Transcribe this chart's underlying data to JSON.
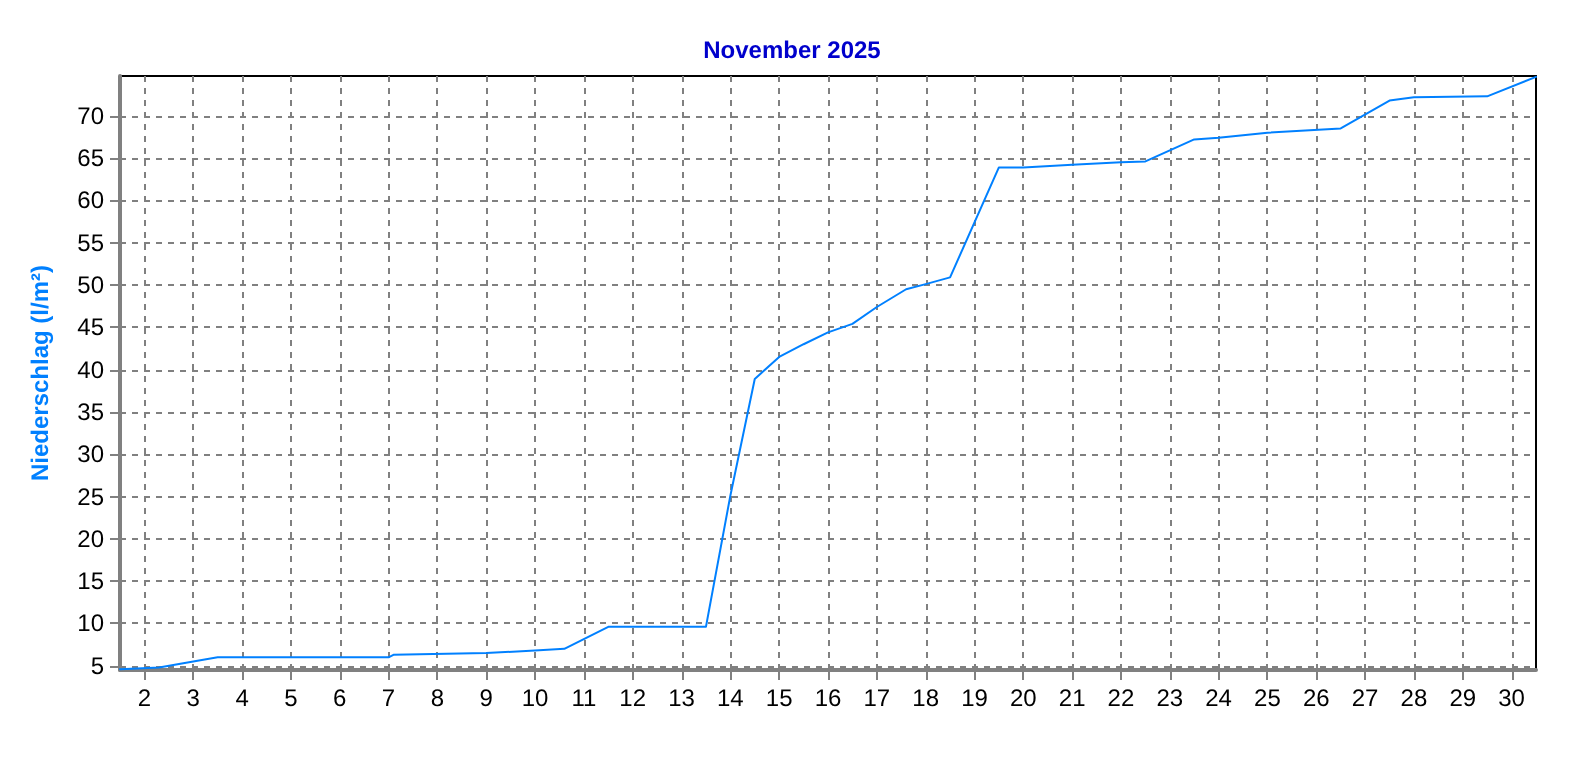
{
  "chart_data": {
    "type": "line",
    "title": "November 2025",
    "ylabel": "Niederschlag (l/m²)",
    "xlim": [
      1.5,
      30.5
    ],
    "xticks": [
      2,
      3,
      4,
      5,
      6,
      7,
      8,
      9,
      10,
      11,
      12,
      13,
      14,
      15,
      16,
      17,
      18,
      19,
      20,
      21,
      22,
      23,
      24,
      25,
      26,
      27,
      28,
      29,
      30
    ],
    "ylim": [
      4.5,
      74.7
    ],
    "yticks": [
      5,
      10,
      15,
      20,
      25,
      30,
      35,
      40,
      45,
      50,
      55,
      60,
      65,
      70
    ],
    "grid": true,
    "marker": "none",
    "line_style": "solid",
    "series": [
      {
        "color": "#0080ff",
        "x": [
          1.5,
          2.3,
          3,
          3.5,
          7,
          7.1,
          9,
          10,
          10.6,
          11.5,
          13.5,
          14,
          14.5,
          15,
          15.5,
          16,
          16.5,
          17,
          17.6,
          18,
          18.5,
          19.5,
          20,
          21,
          22,
          22.5,
          23.5,
          24,
          25,
          26.5,
          27.5,
          28,
          29.5,
          30.5
        ],
        "values": [
          4.6,
          4.8,
          5.5,
          6,
          6,
          6.3,
          6.5,
          6.8,
          7,
          9.6,
          9.6,
          25.1,
          38.9,
          41.5,
          43,
          44.4,
          45.4,
          47.4,
          49.5,
          50.1,
          50.9,
          63.9,
          63.9,
          64.2,
          64.5,
          64.6,
          67.2,
          67.4,
          68,
          68.5,
          71.8,
          72.2,
          72.3,
          74.6
        ]
      }
    ]
  }
}
